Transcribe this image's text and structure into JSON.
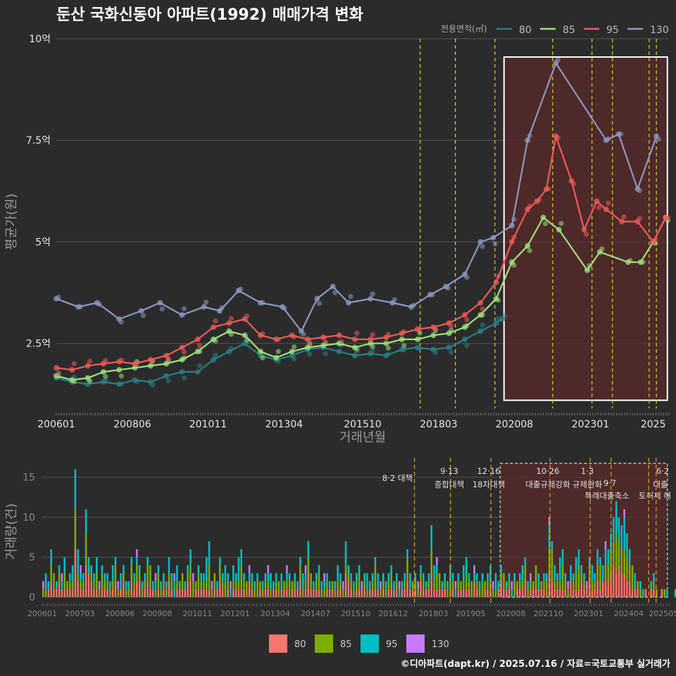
{
  "title": "둔산 국화신동아 아파트(1992) 매매가격 변화",
  "caption": "©디아파트(dapt.kr) / 2025.07.16 / 자료=국토교통부 실거래가",
  "colors": {
    "background": "#2b2b2b",
    "grid": "#555555",
    "policy_line": "#d7d431",
    "policy_line_bottom": "#e0a020",
    "highlight_fill": "#5a2a2a",
    "highlight_border": "#ffffff"
  },
  "chart_data": [
    {
      "type": "line",
      "name": "price",
      "legend_title": "전용면적(㎡)",
      "legend_position": "top-right",
      "xlabel": "거래년월",
      "ylabel": "평균가(원)",
      "x_tick_labels": [
        "200601",
        "200806",
        "201011",
        "201304",
        "201510",
        "201803",
        "202008",
        "202301",
        "2025"
      ],
      "x_tick_values": [
        2006.0,
        2008.42,
        2010.83,
        2013.25,
        2015.75,
        2018.17,
        2020.58,
        2023.0,
        2025.0
      ],
      "xlim": [
        2006.0,
        2025.5
      ],
      "y_tick_labels": [
        "2.5억",
        "5억",
        "7.5억",
        "10억"
      ],
      "y_tick_values": [
        2.5,
        5.0,
        7.5,
        10.0
      ],
      "ylim": [
        0.9,
        10.0
      ],
      "y_unit": "억",
      "policy_lines_x": [
        2017.58,
        2018.7,
        2019.96,
        2021.8,
        2023.05,
        2023.7,
        2024.87,
        2025.1
      ],
      "highlight_range": {
        "x": [
          2020.25,
          2025.45
        ],
        "y": [
          1.1,
          9.55
        ]
      },
      "series": [
        {
          "name": "80",
          "color": "#2a7f86",
          "x": [
            2006.0,
            2006.5,
            2007.0,
            2007.5,
            2008.0,
            2008.5,
            2009.0,
            2009.5,
            2010.0,
            2010.5,
            2011.0,
            2011.5,
            2012.0,
            2012.5,
            2013.0,
            2013.5,
            2014.0,
            2014.5,
            2015.0,
            2015.5,
            2016.0,
            2016.5,
            2017.0,
            2017.5,
            2018.0,
            2018.5,
            2019.0,
            2019.5,
            2020.0,
            2020.2
          ],
          "y": [
            1.65,
            1.55,
            1.5,
            1.55,
            1.5,
            1.6,
            1.55,
            1.7,
            1.8,
            1.8,
            2.1,
            2.3,
            2.5,
            2.2,
            2.1,
            2.2,
            2.35,
            2.4,
            2.3,
            2.2,
            2.25,
            2.2,
            2.35,
            2.4,
            2.35,
            2.4,
            2.6,
            2.8,
            3.0,
            3.1
          ]
        },
        {
          "name": "85",
          "color": "#9ee27c",
          "x": [
            2006.0,
            2006.5,
            2007.0,
            2007.5,
            2008.0,
            2008.5,
            2009.0,
            2009.5,
            2010.0,
            2010.5,
            2011.0,
            2011.5,
            2012.0,
            2012.5,
            2013.0,
            2013.5,
            2014.0,
            2014.5,
            2015.0,
            2015.5,
            2016.0,
            2016.5,
            2017.0,
            2017.5,
            2018.0,
            2018.5,
            2019.0,
            2019.5,
            2020.0,
            2020.5,
            2021.0,
            2021.5,
            2022.0,
            2022.9,
            2023.3,
            2024.2,
            2024.6,
            2025.0,
            2025.4
          ],
          "y": [
            1.7,
            1.6,
            1.65,
            1.8,
            1.85,
            1.9,
            1.95,
            2.0,
            2.1,
            2.3,
            2.6,
            2.8,
            2.7,
            2.3,
            2.15,
            2.3,
            2.4,
            2.45,
            2.5,
            2.4,
            2.5,
            2.5,
            2.6,
            2.6,
            2.7,
            2.75,
            2.9,
            3.2,
            3.6,
            4.5,
            4.9,
            5.6,
            5.3,
            4.3,
            4.75,
            4.5,
            4.5,
            5.0,
            5.6
          ]
        },
        {
          "name": "95",
          "color": "#f15a5a",
          "x": [
            2006.0,
            2006.5,
            2007.0,
            2007.5,
            2008.0,
            2008.5,
            2009.0,
            2009.5,
            2010.0,
            2010.5,
            2011.0,
            2011.5,
            2012.0,
            2012.5,
            2013.0,
            2013.5,
            2014.0,
            2014.5,
            2015.0,
            2015.5,
            2016.0,
            2016.5,
            2017.0,
            2017.5,
            2018.0,
            2018.5,
            2019.0,
            2019.5,
            2020.0,
            2020.5,
            2021.0,
            2021.3,
            2021.6,
            2021.9,
            2022.4,
            2022.8,
            2023.2,
            2023.5,
            2024.0,
            2024.5,
            2025.0,
            2025.4
          ],
          "y": [
            1.9,
            1.85,
            1.95,
            2.0,
            2.05,
            2.0,
            2.1,
            2.2,
            2.4,
            2.6,
            2.9,
            3.0,
            3.1,
            2.7,
            2.6,
            2.7,
            2.6,
            2.65,
            2.7,
            2.6,
            2.6,
            2.65,
            2.75,
            2.85,
            2.9,
            3.0,
            3.2,
            3.5,
            4.0,
            5.0,
            5.8,
            6.0,
            6.3,
            7.6,
            6.5,
            5.3,
            6.0,
            5.8,
            5.5,
            5.5,
            5.0,
            5.6
          ]
        },
        {
          "name": "130",
          "color": "#8d99c4",
          "x": [
            2006.0,
            2006.7,
            2007.3,
            2008.0,
            2008.7,
            2009.3,
            2010.0,
            2010.7,
            2011.2,
            2011.8,
            2012.5,
            2013.2,
            2013.8,
            2014.3,
            2014.8,
            2015.3,
            2016.0,
            2016.7,
            2017.3,
            2017.9,
            2018.4,
            2019.0,
            2019.5,
            2019.9,
            2020.5,
            2021.0,
            2021.9,
            2023.5,
            2023.9,
            2024.5,
            2025.1
          ],
          "y": [
            3.6,
            3.4,
            3.5,
            3.1,
            3.3,
            3.5,
            3.2,
            3.4,
            3.3,
            3.8,
            3.5,
            3.4,
            2.8,
            3.6,
            3.9,
            3.5,
            3.6,
            3.5,
            3.4,
            3.7,
            3.9,
            4.2,
            5.0,
            5.1,
            5.4,
            7.5,
            9.4,
            7.5,
            7.65,
            6.3,
            7.6
          ]
        }
      ]
    },
    {
      "type": "bar",
      "name": "volume",
      "ylabel": "거래량(건)",
      "stacked": true,
      "x_tick_labels": [
        "200601",
        "200703",
        "200806",
        "200908",
        "201011",
        "201201",
        "201304",
        "201407",
        "201510",
        "201612",
        "201803",
        "201905",
        "202008",
        "202110",
        "202301",
        "202404",
        "202505"
      ],
      "x_tick_values": [
        2006.0,
        2007.17,
        2008.42,
        2009.58,
        2010.83,
        2012.0,
        2013.25,
        2014.5,
        2015.75,
        2016.92,
        2018.17,
        2019.33,
        2020.58,
        2021.75,
        2023.0,
        2024.25,
        2025.33
      ],
      "xlim": [
        2006.0,
        2025.5
      ],
      "y_tick_labels": [
        "0",
        "5",
        "10",
        "15"
      ],
      "y_tick_values": [
        0,
        5,
        10,
        15
      ],
      "ylim": [
        0,
        17
      ],
      "legend_position": "bottom",
      "highlight_range": {
        "x": [
          2020.25,
          2025.45
        ]
      },
      "series": [
        {
          "name": "80",
          "color": "#f8766d"
        },
        {
          "name": "85",
          "color": "#7cae00"
        },
        {
          "name": "95",
          "color": "#00bfc4"
        },
        {
          "name": "130",
          "color": "#c77cff"
        }
      ],
      "monthly_totals": [
        2,
        3,
        2,
        6,
        3,
        2,
        4,
        3,
        5,
        2,
        3,
        4,
        16,
        6,
        4,
        3,
        11,
        5,
        4,
        3,
        5,
        2,
        4,
        3,
        3,
        2,
        4,
        5,
        2,
        3,
        4,
        2,
        2,
        5,
        3,
        6,
        4,
        2,
        3,
        5,
        4,
        2,
        3,
        4,
        2,
        3,
        2,
        5,
        3,
        3,
        4,
        2,
        3,
        2,
        4,
        6,
        3,
        2,
        4,
        3,
        3,
        5,
        7,
        2,
        3,
        2,
        5,
        3,
        4,
        3,
        2,
        4,
        3,
        5,
        6,
        3,
        2,
        4,
        3,
        2,
        3,
        2,
        2,
        3,
        4,
        3,
        2,
        3,
        2,
        3,
        2,
        4,
        3,
        2,
        3,
        2,
        5,
        3,
        4,
        7,
        3,
        2,
        3,
        4,
        2,
        3,
        3,
        2,
        2,
        2,
        4,
        3,
        2,
        7,
        4,
        3,
        2,
        3,
        4,
        2,
        3,
        3,
        2,
        3,
        5,
        3,
        2,
        3,
        2,
        3,
        4,
        2,
        3,
        2,
        2,
        3,
        6,
        3,
        2,
        3,
        2,
        4,
        3,
        2,
        3,
        9,
        4,
        5,
        3,
        2,
        3,
        2,
        4,
        3,
        2,
        3,
        2,
        4,
        5,
        3,
        2,
        4,
        3,
        2,
        3,
        2,
        3,
        4,
        2,
        3,
        2,
        4,
        3,
        2,
        3,
        2,
        3,
        2,
        3,
        4,
        5,
        2,
        3,
        2,
        4,
        3,
        2,
        3,
        3,
        10,
        7,
        4,
        3,
        5,
        6,
        3,
        2,
        4,
        3,
        5,
        6,
        4,
        3,
        2,
        5,
        4,
        3,
        6,
        5,
        4,
        7,
        6,
        8,
        10,
        12,
        10,
        9,
        11,
        8,
        6,
        4,
        3,
        2,
        2,
        1,
        1,
        0,
        2,
        3,
        1,
        0,
        1,
        1,
        1,
        0,
        0,
        1,
        2,
        1,
        0,
        1,
        0,
        1,
        2,
        1,
        0,
        1,
        0,
        1,
        3,
        1,
        1,
        2,
        0,
        1,
        1,
        2,
        1,
        0,
        1,
        1,
        0,
        1,
        2,
        1,
        0,
        1,
        1,
        1,
        0,
        1,
        2,
        3,
        4,
        2,
        1,
        0,
        1,
        2,
        1,
        1,
        3,
        4,
        2,
        3
      ],
      "events": [
        {
          "x": 2017.58,
          "date": "8·2",
          "label": "대책"
        },
        {
          "x": 2018.7,
          "date": "9·13",
          "label": "종합대책"
        },
        {
          "x": 2019.96,
          "date": "12·16",
          "label": "18차대책"
        },
        {
          "x": 2021.8,
          "date": "10·26",
          "label": "대출규제강화"
        },
        {
          "x": 2023.05,
          "date": "1·3",
          "label": "규제완화"
        },
        {
          "x": 2023.7,
          "date": "9·7",
          "label": "특례대출축소"
        },
        {
          "x": 2024.87,
          "date": "",
          "label": "토허제 해"
        },
        {
          "x": 2025.1,
          "date": "6·2",
          "label": "대출"
        }
      ]
    }
  ]
}
